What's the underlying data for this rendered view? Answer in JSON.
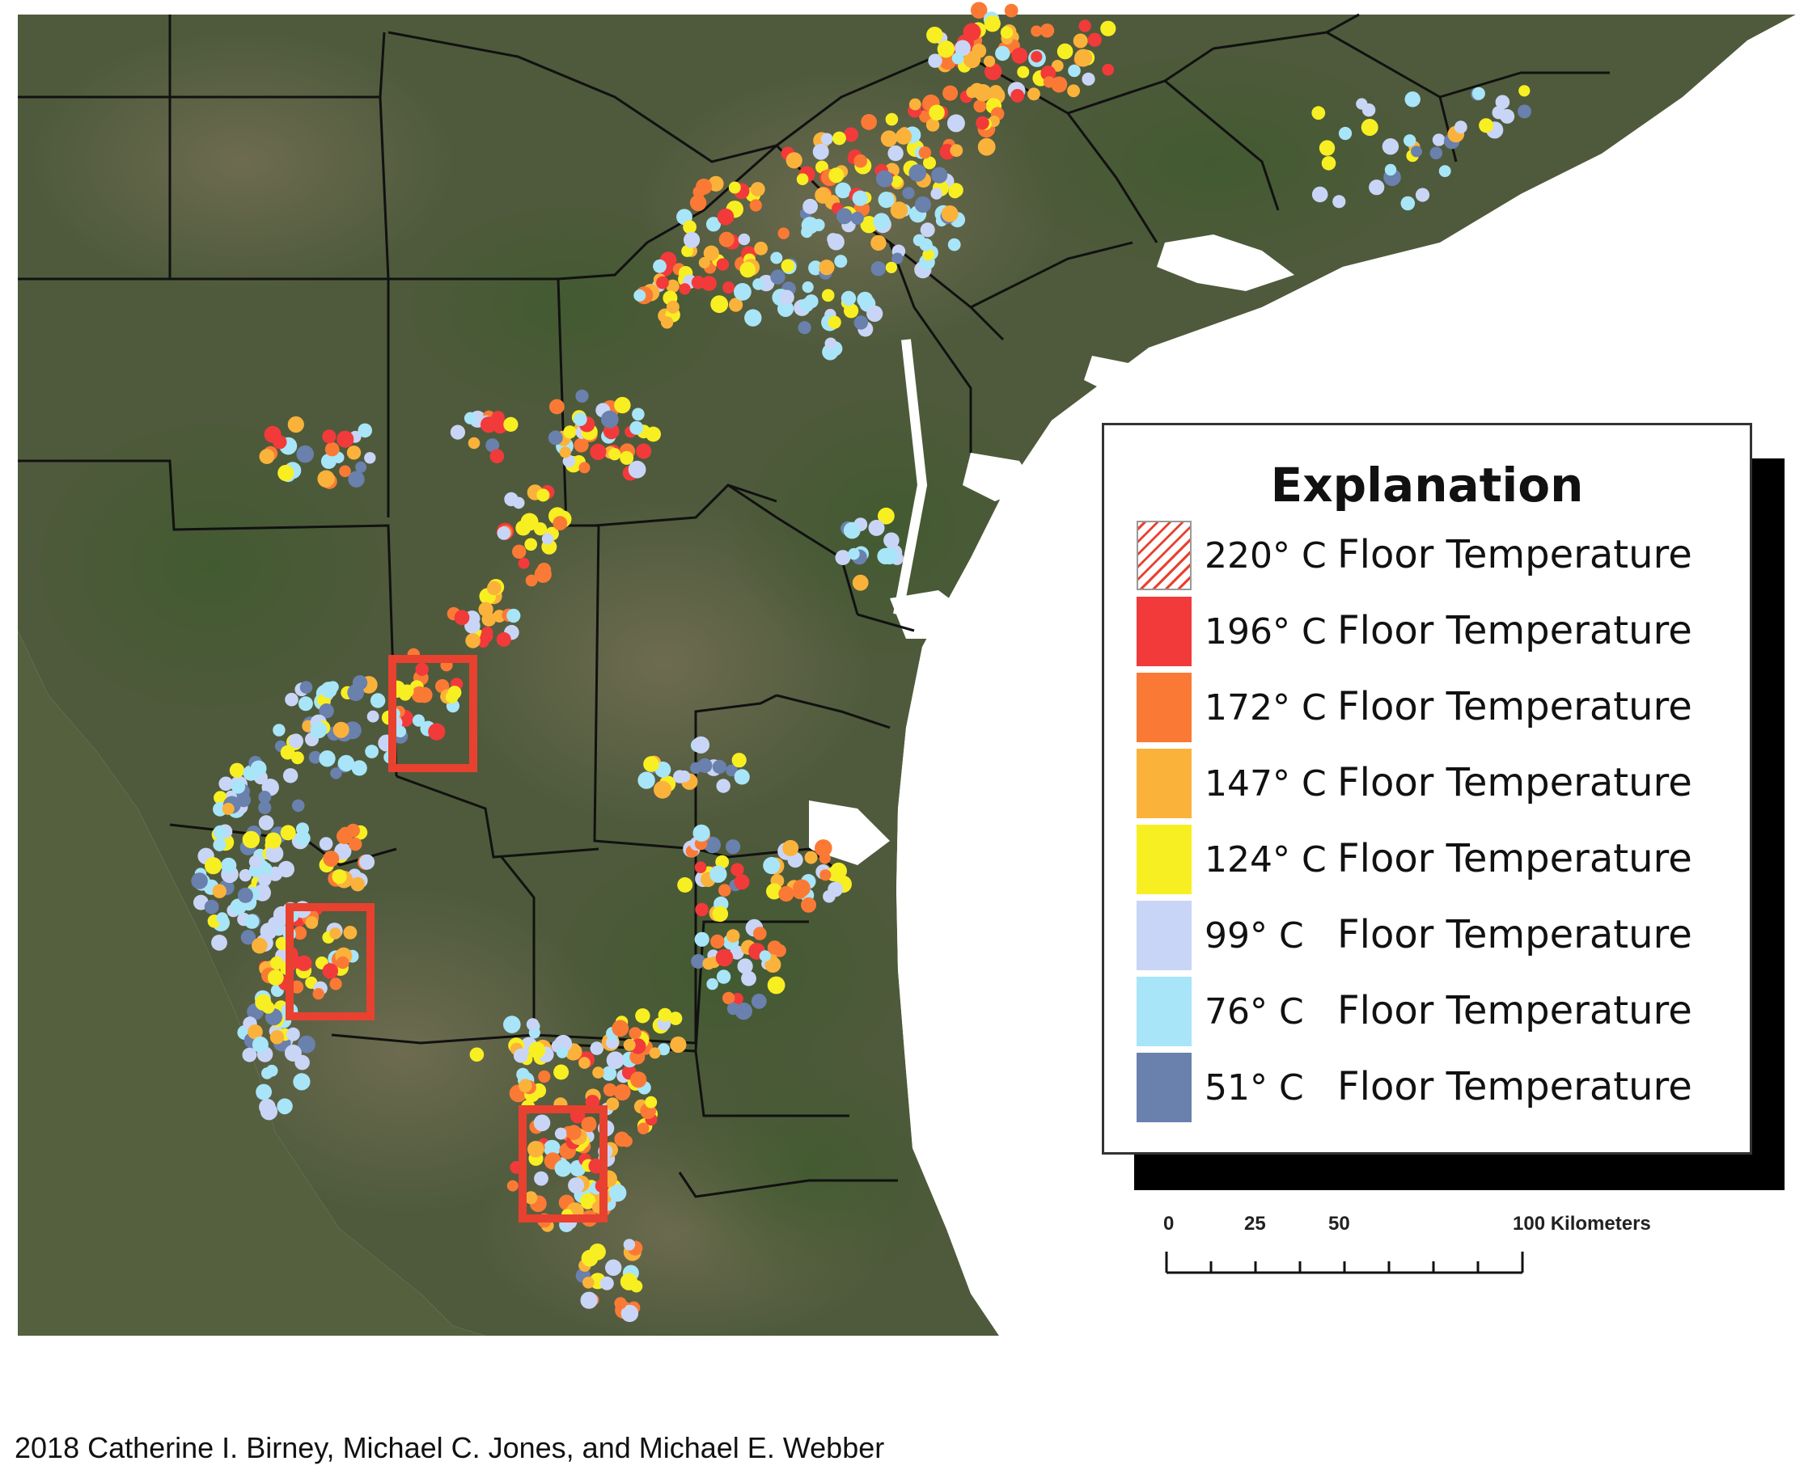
{
  "map": {
    "colors": {
      "land": "#4f5a3c",
      "water": "#ffffff",
      "county_border": "#111111",
      "highlight_box": "#e8412f"
    }
  },
  "legend": {
    "title": "Explanation",
    "items": [
      {
        "temp": "220° C",
        "label": "Floor Temperature",
        "color": "#ffffff",
        "pattern": "hatched-red"
      },
      {
        "temp": "196° C",
        "label": "Floor Temperature",
        "color": "#f23a3a"
      },
      {
        "temp": "172° C",
        "label": "Floor Temperature",
        "color": "#fa7a35"
      },
      {
        "temp": "147° C",
        "label": "Floor Temperature",
        "color": "#fbb23b"
      },
      {
        "temp": "124° C",
        "label": "Floor Temperature",
        "color": "#f8ef22"
      },
      {
        "temp": "99° C",
        "label": "Floor Temperature",
        "color": "#c9d5f6"
      },
      {
        "temp": "76° C",
        "label": "Floor Temperature",
        "color": "#a8e5f8"
      },
      {
        "temp": "51° C",
        "label": "Floor Temperature",
        "color": "#6a80ad"
      }
    ]
  },
  "scalebar": {
    "labels": [
      "0",
      "25",
      "50",
      "100 Kilometers"
    ]
  },
  "caption": "2018 Catherine I. Birney, Michael C. Jones, and Michael E. Webber"
}
